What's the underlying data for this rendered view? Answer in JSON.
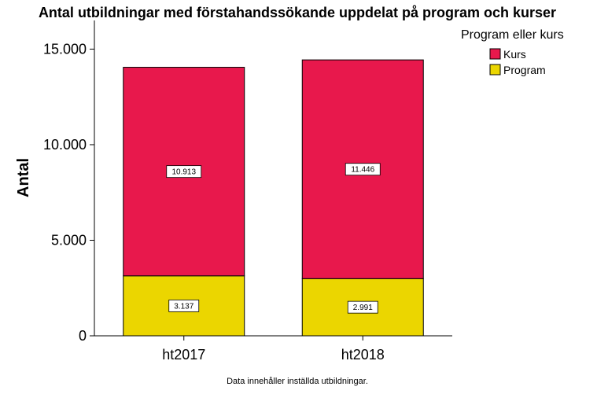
{
  "chart_data": {
    "type": "bar",
    "stacked": true,
    "title": "Antal utbildningar  med förstahandssökande uppdelat på program och kurser",
    "ylabel": "Antal",
    "xlabel": "",
    "categories": [
      "ht2017",
      "ht2018"
    ],
    "series": [
      {
        "name": "Program",
        "values": [
          3137,
          2991
        ],
        "labels": [
          "3.137",
          "2.991"
        ],
        "color": "#ebd600"
      },
      {
        "name": "Kurs",
        "values": [
          10913,
          11446
        ],
        "labels": [
          "10.913",
          "11.446"
        ],
        "color": "#e8184c"
      }
    ],
    "ylim": [
      0,
      16500
    ],
    "yticks": [
      0,
      5000,
      10000,
      15000
    ],
    "ytick_labels": [
      "0",
      "5.000",
      "10.000",
      "15.000"
    ],
    "grid": false,
    "legend": {
      "title": "Program eller kurs",
      "position": "top-right",
      "items": [
        {
          "name": "Kurs",
          "color": "#e8184c"
        },
        {
          "name": "Program",
          "color": "#ebd600"
        }
      ]
    },
    "footnote": "Data innehåller inställda utbildningar."
  }
}
